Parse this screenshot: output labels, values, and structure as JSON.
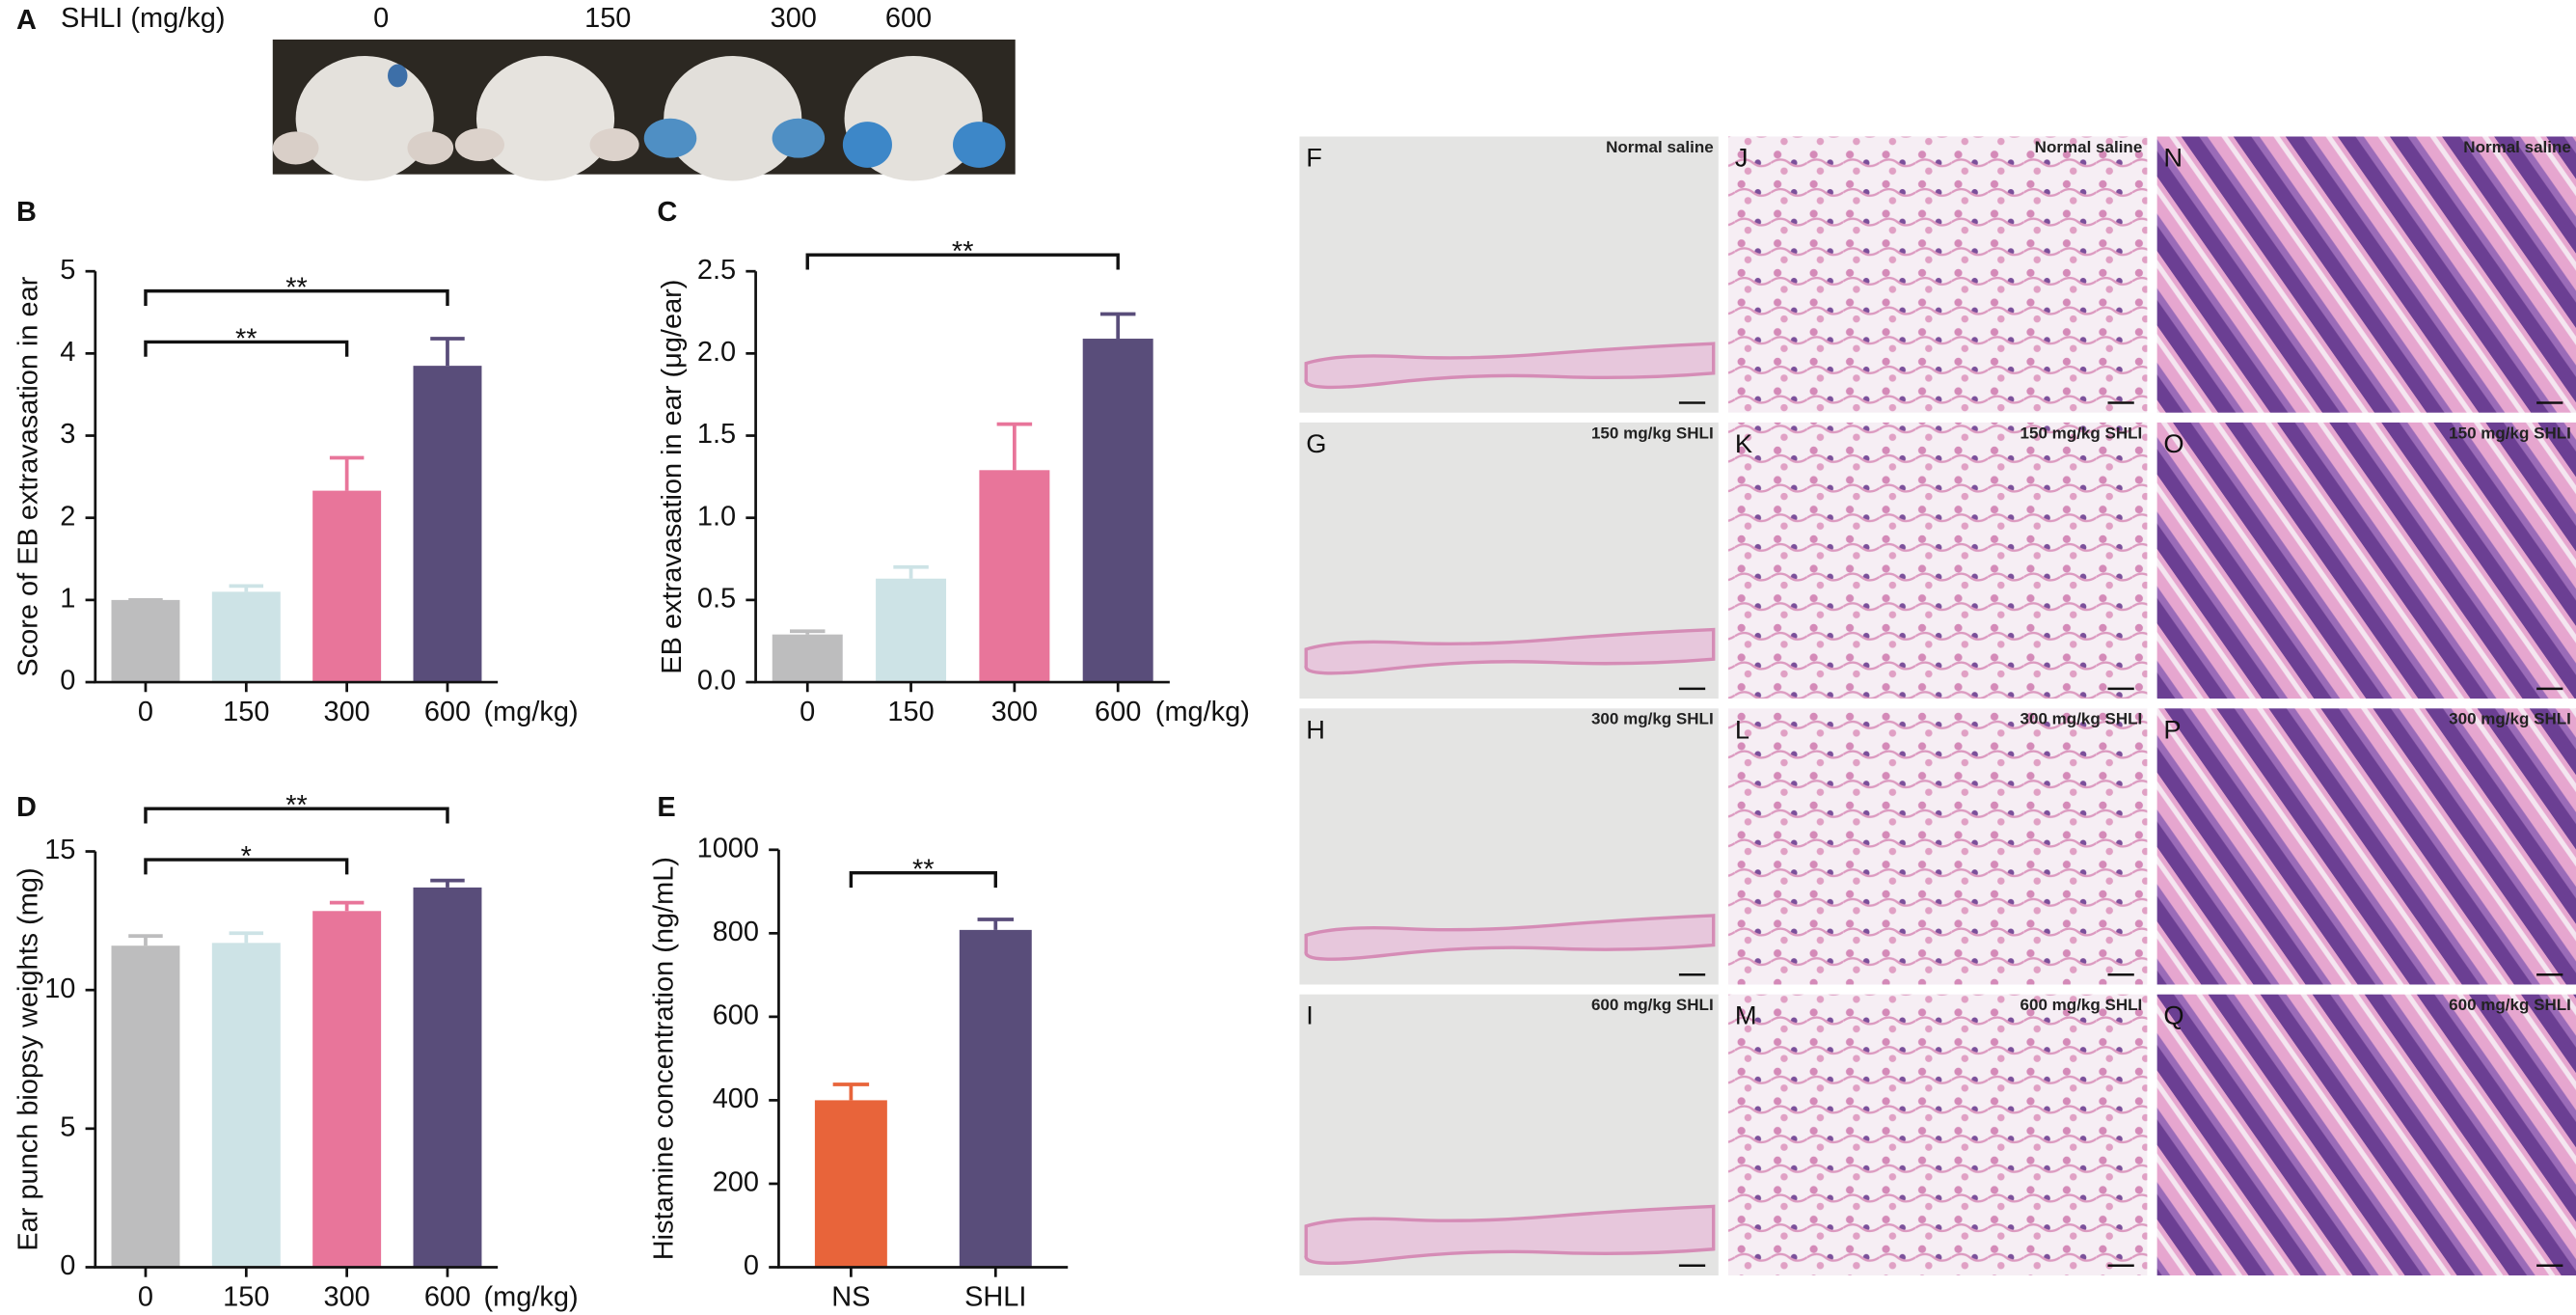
{
  "panel_a": {
    "label": "A",
    "header": "SHLI (mg/kg)",
    "doses": [
      "0",
      "150",
      "300",
      "600"
    ]
  },
  "chart_data": [
    {
      "type": "bar",
      "panel": "B",
      "y_label": "Score of EB extravasation in ear",
      "x_unit": "(mg/kg)",
      "categories": [
        "0",
        "150",
        "300",
        "600"
      ],
      "values": [
        1,
        1.1,
        2.33,
        3.85
      ],
      "errors": [
        0,
        0.07,
        0.4,
        0.33
      ],
      "colors": [
        "#bdbdbe",
        "#cde3e6",
        "#e8759a",
        "#594d7a"
      ],
      "ylim": [
        0,
        5
      ],
      "yticks": [
        0,
        1,
        2,
        3,
        4,
        5
      ],
      "significance": [
        {
          "label": "**",
          "between": [
            "0",
            "600"
          ]
        },
        {
          "label": "**",
          "between": [
            "0",
            "300"
          ]
        }
      ]
    },
    {
      "type": "bar",
      "panel": "C",
      "y_label": "EB extravasation in ear (μg/ear)",
      "x_unit": "(mg/kg)",
      "categories": [
        "0",
        "150",
        "300",
        "600"
      ],
      "values": [
        0.29,
        0.63,
        1.29,
        2.09
      ],
      "errors": [
        0.02,
        0.07,
        0.28,
        0.15
      ],
      "colors": [
        "#bdbdbe",
        "#cde3e6",
        "#e8759a",
        "#594d7a"
      ],
      "ylim": [
        0,
        2.5
      ],
      "yticks": [
        {
          "value": 0,
          "label": "0.0"
        },
        0.5,
        {
          "value": 1,
          "label": "1.0"
        },
        1.5,
        {
          "value": 2,
          "label": "2.0"
        },
        2.5
      ],
      "significance": [
        {
          "label": "**",
          "between": [
            "0",
            "600"
          ]
        }
      ]
    },
    {
      "type": "bar",
      "panel": "D",
      "y_label": "Ear punch biopsy weights (mg)",
      "x_unit": "(mg/kg)",
      "categories": [
        "0",
        "150",
        "300",
        "600"
      ],
      "values": [
        11.6,
        11.7,
        12.85,
        13.7
      ],
      "errors": [
        0.35,
        0.35,
        0.3,
        0.25
      ],
      "colors": [
        "#bdbdbe",
        "#cde3e6",
        "#e8759a",
        "#594d7a"
      ],
      "ylim": [
        0,
        15
      ],
      "yticks": [
        0,
        5,
        10,
        15
      ],
      "significance": [
        {
          "label": "**",
          "between": [
            "0",
            "600"
          ]
        },
        {
          "label": "*",
          "between": [
            "0",
            "300"
          ]
        }
      ]
    },
    {
      "type": "bar",
      "panel": "E",
      "y_label": "Histamine concentration (ng/mL)",
      "categories": [
        "NS",
        "SHLI"
      ],
      "values": [
        400,
        808
      ],
      "errors": [
        38,
        25
      ],
      "colors": [
        "#e8643a",
        "#594d7a"
      ],
      "ylim": [
        0,
        1000
      ],
      "yticks": [
        0,
        200,
        400,
        600,
        800,
        1000
      ],
      "significance": [
        {
          "label": "**",
          "between": [
            "NS",
            "SHLI"
          ]
        }
      ]
    }
  ],
  "histology": {
    "columns": [
      {
        "panels": [
          {
            "letter": "F",
            "caption": "Normal saline"
          },
          {
            "letter": "G",
            "caption": "150 mg/kg SHLI"
          },
          {
            "letter": "H",
            "caption": "300 mg/kg SHLI"
          },
          {
            "letter": "I",
            "caption": "600 mg/kg SHLI"
          }
        ]
      },
      {
        "panels": [
          {
            "letter": "J",
            "caption": "Normal saline"
          },
          {
            "letter": "K",
            "caption": "150 mg/kg SHLI"
          },
          {
            "letter": "L",
            "caption": "300 mg/kg SHLI"
          },
          {
            "letter": "M",
            "caption": "600 mg/kg SHLI"
          }
        ]
      },
      {
        "panels": [
          {
            "letter": "N",
            "caption": "Normal saline"
          },
          {
            "letter": "O",
            "caption": "150 mg/kg SHLI"
          },
          {
            "letter": "P",
            "caption": "300 mg/kg SHLI"
          },
          {
            "letter": "Q",
            "caption": "600 mg/kg SHLI"
          }
        ]
      }
    ]
  }
}
